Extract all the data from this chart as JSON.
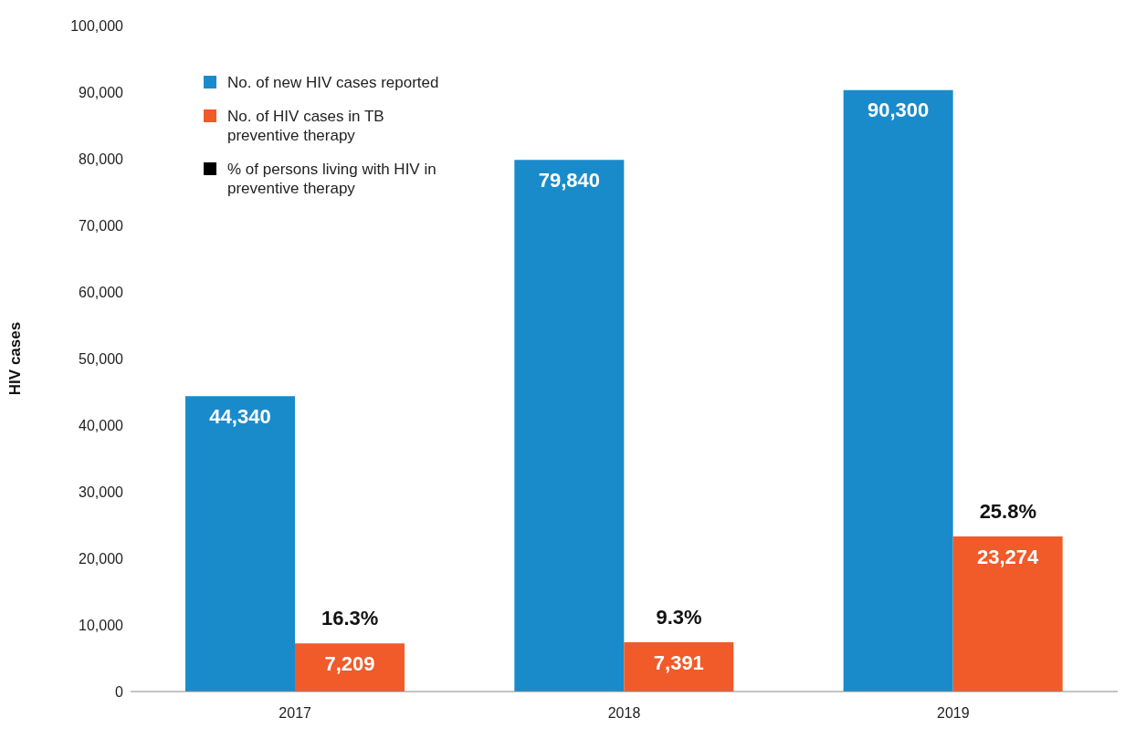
{
  "chart_data": {
    "type": "bar",
    "ylabel": "HIV cases",
    "categories": [
      "2017",
      "2018",
      "2019"
    ],
    "series": [
      {
        "name": "No. of new HIV cases reported",
        "color": "#1a8bca",
        "values": [
          44340,
          79840,
          90300
        ],
        "value_labels": [
          "44,340",
          "79,840",
          "90,300"
        ]
      },
      {
        "name": "No. of HIV cases in TB preventive therapy",
        "color": "#f15a29",
        "values": [
          7209,
          7391,
          23274
        ],
        "value_labels": [
          "7,209",
          "7,391",
          "23,274"
        ]
      },
      {
        "name": "% of persons living with HIV in preventive therapy",
        "color": "#000000",
        "type": "scatter",
        "values": [
          null,
          null,
          null
        ]
      }
    ],
    "annotations": [
      {
        "text": "16.3%",
        "x": "2017",
        "y": 7209
      },
      {
        "text": "9.3%",
        "x": "2018",
        "y": 7391
      },
      {
        "text": "25.8%",
        "x": "2019",
        "y": 23274
      }
    ],
    "ylim": [
      0,
      100000
    ],
    "yticks": [
      {
        "value": 0,
        "label": "0"
      },
      {
        "value": 10000,
        "label": "10,000"
      },
      {
        "value": 20000,
        "label": "20,000"
      },
      {
        "value": 30000,
        "label": "30,000"
      },
      {
        "value": 40000,
        "label": "40,000"
      },
      {
        "value": 50000,
        "label": "50,000"
      },
      {
        "value": 60000,
        "label": "60,000"
      },
      {
        "value": 70000,
        "label": "70,000"
      },
      {
        "value": 80000,
        "label": "80,000"
      },
      {
        "value": 90000,
        "label": "90,000"
      },
      {
        "value": 100000,
        "label": "100,000"
      }
    ],
    "grid": false,
    "legend": "top left"
  }
}
